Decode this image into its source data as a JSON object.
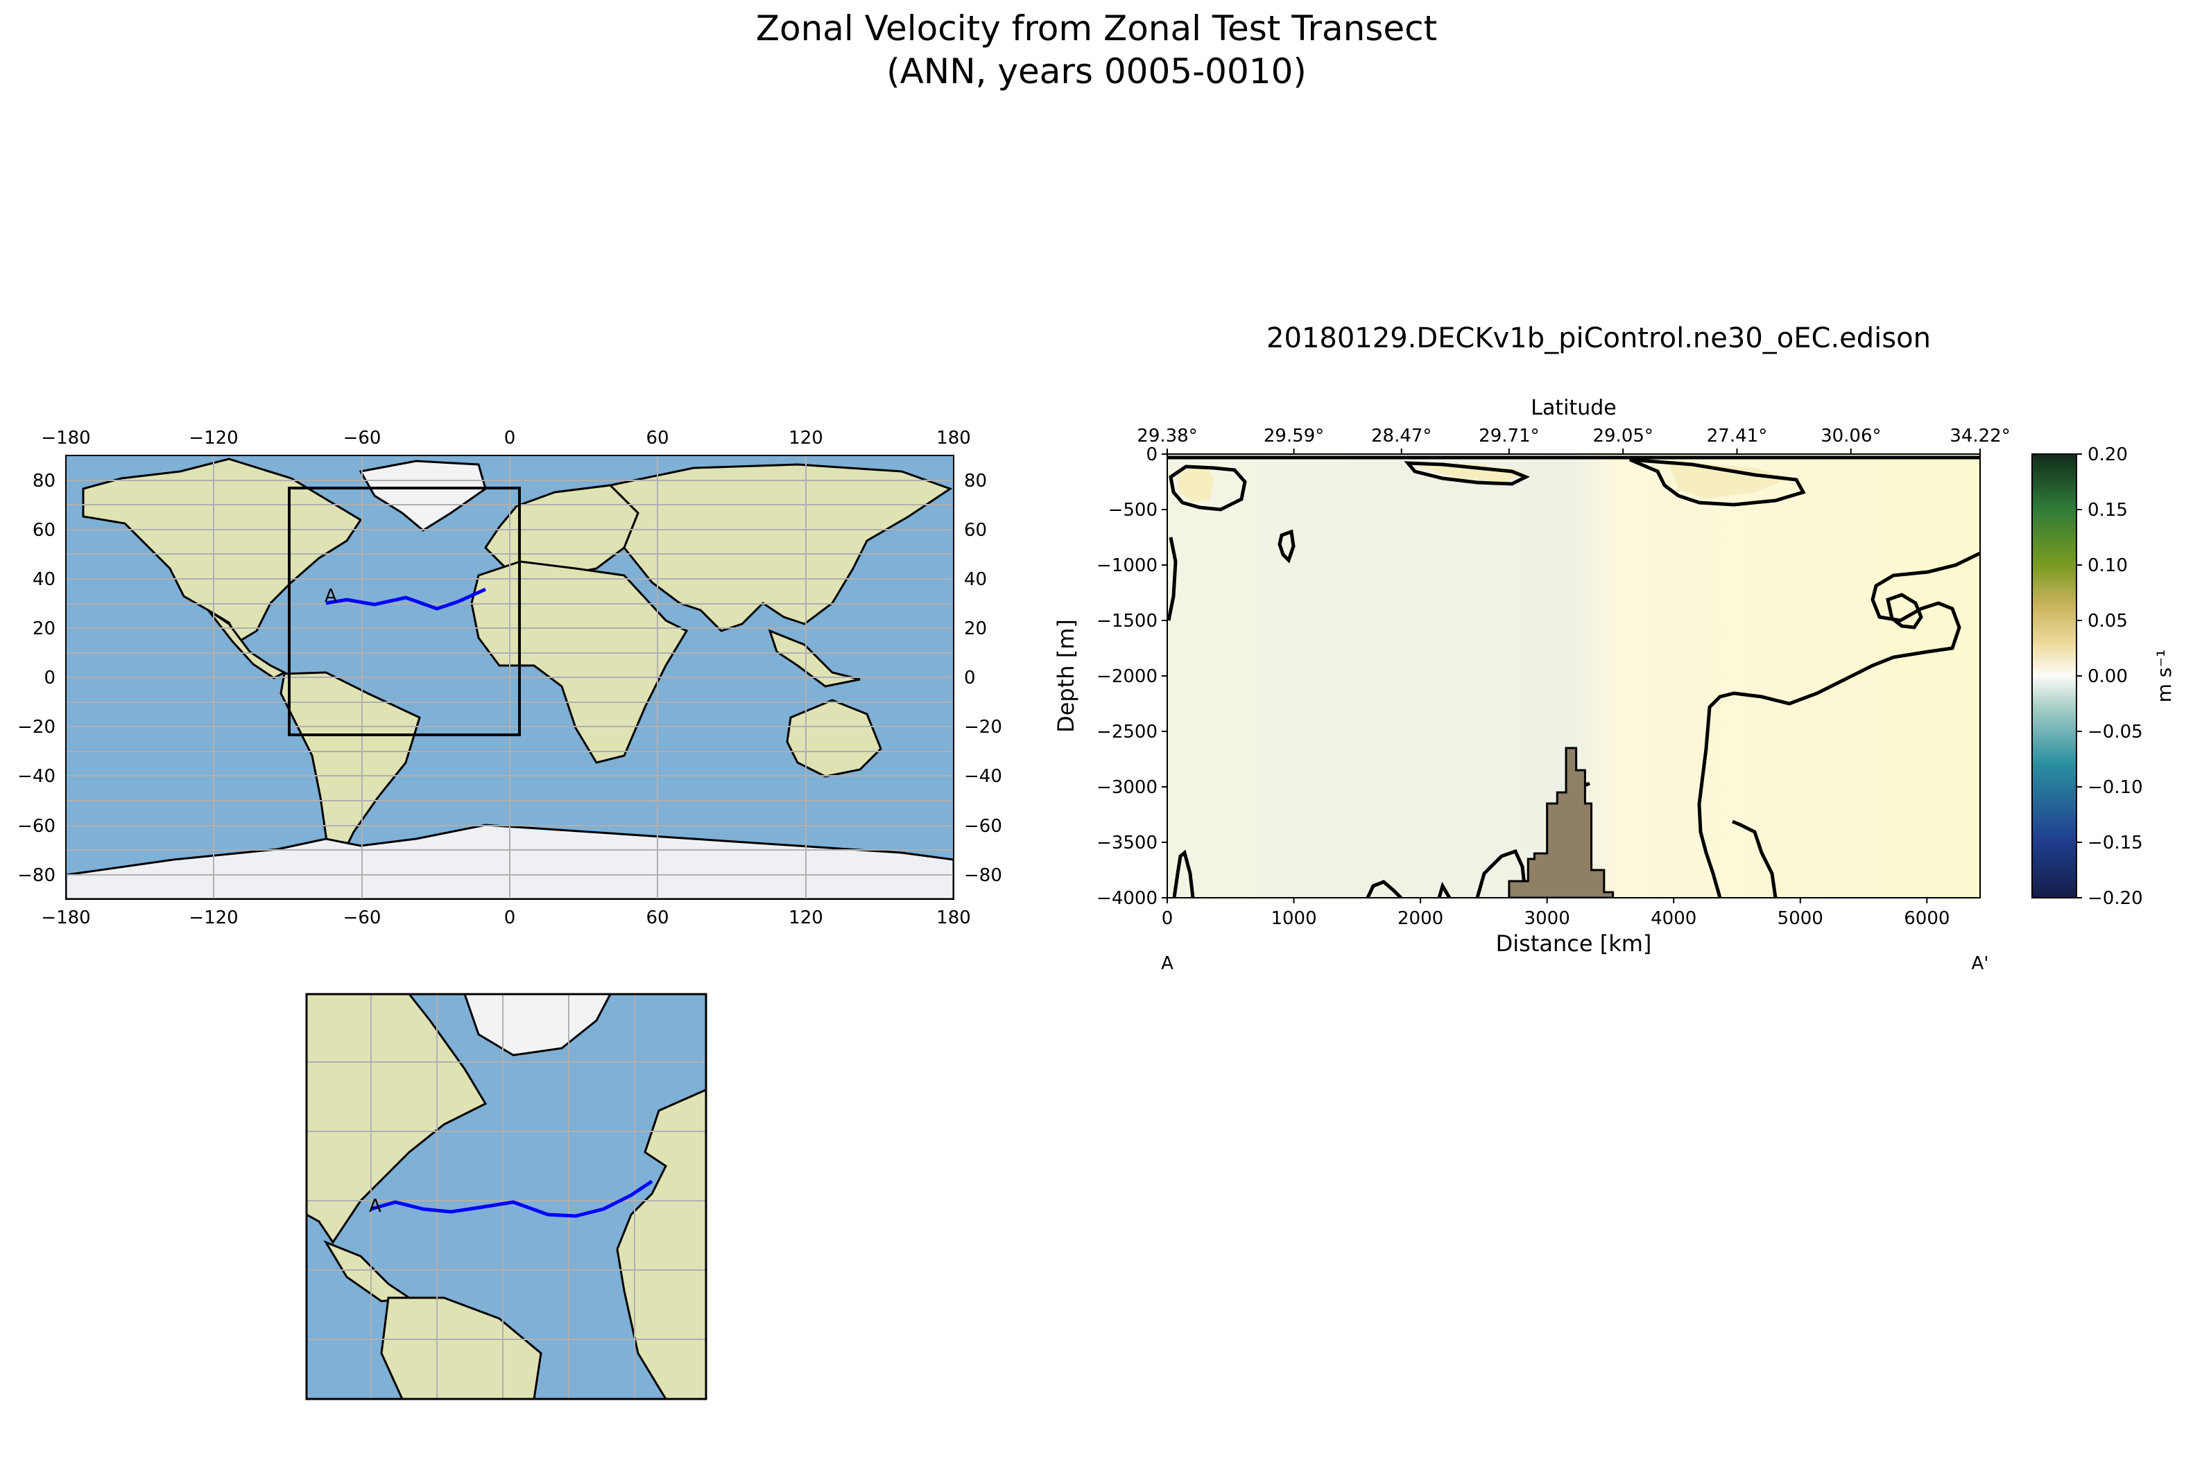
{
  "figure": {
    "title_line1": "Zonal Velocity from Zonal Test Transect",
    "title_line2": "(ANN, years 0005-0010)",
    "section_title": "20180129.DECKv1b_piControl.ne30_oEC.edison"
  },
  "map": {
    "transect_start_label": "A",
    "transect_color": "#0000ff",
    "ocean_color": "#7fb0d6",
    "land_color": "#dfe3b4"
  },
  "chart_data": {
    "type": "heatmap",
    "xlabel": "Distance [km]",
    "ylabel": "Depth [m]",
    "top_axis_label": "Latitude",
    "xlim": [
      0,
      6420
    ],
    "ylim": [
      -4000,
      0
    ],
    "x_ticks": [
      0,
      1000,
      2000,
      3000,
      4000,
      5000,
      6000
    ],
    "y_ticks": [
      0,
      -500,
      -1000,
      -1500,
      -2000,
      -2500,
      -3000,
      -3500,
      -4000
    ],
    "top_tick_labels": [
      "29.38°",
      "29.59°",
      "28.47°",
      "29.71°",
      "29.05°",
      "27.41°",
      "30.06°",
      "34.22°"
    ],
    "top_tick_distances": [
      0,
      1000,
      1850,
      2700,
      3600,
      4500,
      5400,
      6420
    ],
    "endpoint_labels": [
      "A",
      "A'"
    ],
    "colorbar": {
      "label": "m s⁻¹",
      "range": [
        -0.2,
        0.2
      ],
      "ticks": [
        "0.20",
        "0.15",
        "0.10",
        "0.05",
        "0.00",
        "−0.05",
        "−0.10",
        "−0.15",
        "−0.20"
      ]
    },
    "bathymetry": [
      [
        2700,
        -4000
      ],
      [
        2700,
        -3850
      ],
      [
        2850,
        -3850
      ],
      [
        2850,
        -3650
      ],
      [
        2900,
        -3650
      ],
      [
        2900,
        -3600
      ],
      [
        3000,
        -3600
      ],
      [
        3000,
        -3150
      ],
      [
        3080,
        -3150
      ],
      [
        3080,
        -3050
      ],
      [
        3150,
        -3050
      ],
      [
        3150,
        -2650
      ],
      [
        3230,
        -2650
      ],
      [
        3230,
        -2850
      ],
      [
        3300,
        -2850
      ],
      [
        3300,
        -3150
      ],
      [
        3350,
        -3150
      ],
      [
        3350,
        -3750
      ],
      [
        3450,
        -3750
      ],
      [
        3450,
        -3950
      ],
      [
        3520,
        -3950
      ],
      [
        3520,
        -4000
      ]
    ]
  },
  "world_map": {
    "x_ticks": [
      "−180",
      "−120",
      "−60",
      "0",
      "60",
      "120",
      "180"
    ],
    "y_ticks_left": [
      "80",
      "60",
      "40",
      "20",
      "0",
      "−20",
      "−40",
      "−60",
      "−80"
    ],
    "y_ticks_right": [
      "80",
      "60",
      "40",
      "20",
      "0",
      "−20",
      "−40",
      "−60",
      "−80"
    ]
  }
}
